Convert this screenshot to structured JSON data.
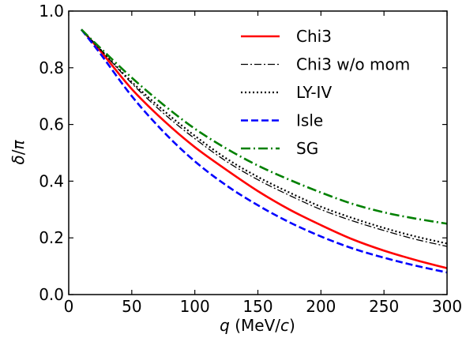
{
  "chart_data": {
    "type": "line",
    "xlabel": {
      "var": "q",
      "rest": " (MeV/",
      "unit_var": "c",
      "close": ")"
    },
    "ylabel": {
      "var1": "δ",
      "slash": "/",
      "var2": "π"
    },
    "xlim": [
      0,
      300
    ],
    "ylim": [
      0.0,
      1.0
    ],
    "xticks": [
      0,
      50,
      100,
      150,
      200,
      250,
      300
    ],
    "xtick_labels": [
      "0",
      "50",
      "100",
      "150",
      "200",
      "250",
      "300"
    ],
    "yticks": [
      0.0,
      0.2,
      0.4,
      0.6,
      0.8,
      1.0
    ],
    "ytick_labels": [
      "0.0",
      "0.2",
      "0.4",
      "0.6",
      "0.8",
      "1.0"
    ],
    "grid": false,
    "legend_position": "top-right",
    "x": [
      10,
      25,
      50,
      75,
      100,
      125,
      150,
      175,
      200,
      225,
      250,
      275,
      300
    ],
    "series": [
      {
        "name": "Chi3",
        "color": "#ff0000",
        "dash": "solid",
        "width": 2.6,
        "values": [
          0.935,
          0.86,
          0.725,
          0.615,
          0.52,
          0.44,
          0.365,
          0.3,
          0.245,
          0.195,
          0.155,
          0.122,
          0.093
        ]
      },
      {
        "name": "Chi3 w/o mom",
        "color": "#000000",
        "dash": "dashdot-thin",
        "width": 1.3,
        "values": [
          0.935,
          0.865,
          0.745,
          0.64,
          0.55,
          0.47,
          0.405,
          0.35,
          0.3,
          0.26,
          0.226,
          0.195,
          0.17
        ]
      },
      {
        "name": "LY-IV",
        "color": "#000000",
        "dash": "dotted",
        "width": 2.2,
        "values": [
          0.935,
          0.865,
          0.75,
          0.65,
          0.56,
          0.48,
          0.415,
          0.36,
          0.31,
          0.27,
          0.235,
          0.205,
          0.18
        ]
      },
      {
        "name": "Isle",
        "color": "#0000ff",
        "dash": "dashed",
        "width": 2.6,
        "values": [
          0.935,
          0.85,
          0.7,
          0.575,
          0.47,
          0.385,
          0.315,
          0.255,
          0.205,
          0.163,
          0.13,
          0.102,
          0.078
        ]
      },
      {
        "name": "SG",
        "color": "#008000",
        "dash": "dashdot",
        "width": 2.6,
        "values": [
          0.935,
          0.87,
          0.765,
          0.67,
          0.585,
          0.515,
          0.455,
          0.405,
          0.36,
          0.32,
          0.29,
          0.268,
          0.25
        ]
      }
    ]
  }
}
